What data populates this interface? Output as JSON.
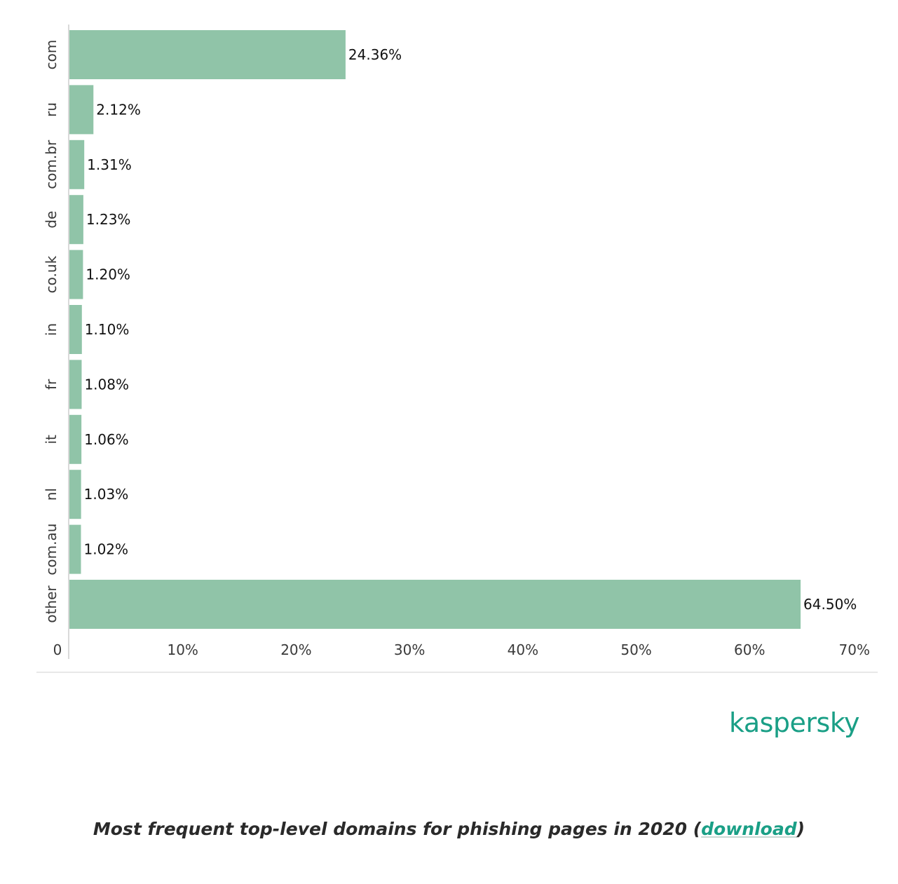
{
  "chart_data": {
    "type": "bar",
    "orientation": "horizontal",
    "categories": [
      "com",
      "ru",
      "com.br",
      "de",
      "co.uk",
      "in",
      "fr",
      "it",
      "nl",
      "com.au",
      "other"
    ],
    "values": [
      24.36,
      2.12,
      1.31,
      1.23,
      1.2,
      1.1,
      1.08,
      1.06,
      1.03,
      1.02,
      64.5
    ],
    "value_labels": [
      "24.36%",
      "2.12%",
      "1.31%",
      "1.23%",
      "1.20%",
      "1.10%",
      "1.08%",
      "1.06%",
      "1.03%",
      "1.02%",
      "64.50%"
    ],
    "xlim": [
      0,
      70
    ],
    "x_ticks": [
      0,
      10,
      20,
      30,
      40,
      50,
      60,
      70
    ],
    "x_tick_labels": [
      "0",
      "10%",
      "20%",
      "30%",
      "40%",
      "50%",
      "60%",
      "70%"
    ],
    "bar_color": "#90c4a8",
    "grid": false,
    "title": "",
    "xlabel": "",
    "ylabel": ""
  },
  "logo": {
    "text": "kaspersky",
    "color": "#1a9f86"
  },
  "caption": {
    "text_before": "Most frequent top-level domains for phishing pages in 2020 (",
    "link_text": "download",
    "text_after": ")"
  }
}
